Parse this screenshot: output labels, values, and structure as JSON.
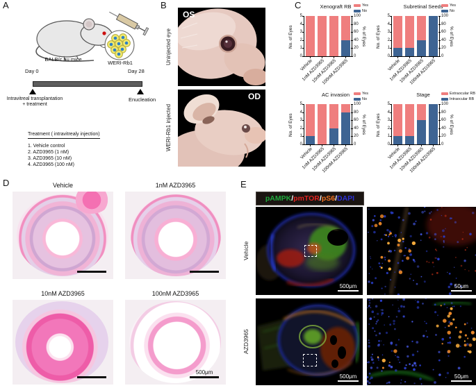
{
  "colors": {
    "yes_pink": "#ef7e7e",
    "no_blue": "#3e6493",
    "scalebar_black": "#111111",
    "scalebar_white": "#ffffff"
  },
  "panels": {
    "a": {
      "label": "A",
      "mouse_caption": "BALB/c nu mice",
      "cells_caption": "WERI-Rb1",
      "timeline": {
        "start_label": "Day 0",
        "end_label": "Day 28",
        "start_event_line1": "Intravitreal transplantation",
        "start_event_line2": "+ treatment",
        "end_event": "Enucleation"
      },
      "treatment": {
        "title": "Treatment ( intravitrealy injection)",
        "items": [
          "1. Vehicle control",
          "2. AZD3965 (1 nM)",
          "3. AZD3965 (10 nM)",
          "4. AZD3965 (100 nM)"
        ]
      }
    },
    "b": {
      "label": "B",
      "top_image": {
        "corner_label": "OS",
        "side_label": "Uninjected eye"
      },
      "bottom_image": {
        "corner_label": "OD",
        "side_label": "WERI-Rb1 injected"
      }
    },
    "c": {
      "label": "C"
    },
    "d": {
      "label": "D",
      "titles": [
        "Vehicle",
        "1nM AZD3965",
        "10nM AZD3965",
        "100nM AZD3965"
      ],
      "scale_label": "500μm"
    },
    "e": {
      "label": "E",
      "header_parts": [
        {
          "text": "pAMPK",
          "color": "#1fa83c"
        },
        {
          "text": "/",
          "color": "#ffffff"
        },
        {
          "text": "pmTOR",
          "color": "#e02421"
        },
        {
          "text": "/",
          "color": "#ffffff"
        },
        {
          "text": "pS6",
          "color": "#f07122"
        },
        {
          "text": "/",
          "color": "#ffffff"
        },
        {
          "text": "DAPI",
          "color": "#2b2fd4"
        }
      ],
      "rows": [
        {
          "side_label": "Vehicle",
          "left_scale": "500μm",
          "right_scale": "50μm"
        },
        {
          "side_label": "AZD3965",
          "left_scale": "500μm",
          "right_scale": "50μm"
        }
      ]
    }
  },
  "chart_data": [
    {
      "type": "bar",
      "stacked": true,
      "title": "Xenograft RB",
      "categories": [
        "Vehicle",
        "1nM AZD3965",
        "10nM AZD3965",
        "100nM AZD3965"
      ],
      "stack": [
        {
          "name": "No",
          "color": "#3e6493",
          "values": [
            0,
            0,
            0,
            2
          ]
        },
        {
          "name": "Yes",
          "color": "#ef7e7e",
          "values": [
            5,
            5,
            5,
            3
          ]
        }
      ],
      "legend": [
        {
          "label": "Yes",
          "color": "#ef7e7e"
        },
        {
          "label": "No",
          "color": "#3e6493"
        }
      ],
      "ylabel_left": "No. of Eyes",
      "ylabel_right": "% of Eyes",
      "ylim_left": [
        0,
        5
      ],
      "ylim_right": [
        0,
        100
      ],
      "yticks_left": [
        0,
        1,
        2,
        3,
        4,
        5
      ],
      "yticks_right": [
        0,
        20,
        40,
        60,
        80,
        100
      ],
      "grid": false,
      "legend_position": "top-right"
    },
    {
      "type": "bar",
      "stacked": true,
      "title": "Subretinal Seeds",
      "categories": [
        "Vehicle",
        "1nM AZD3965",
        "10nM AZD3965",
        "100nM AZD3965"
      ],
      "stack": [
        {
          "name": "No",
          "color": "#3e6493",
          "values": [
            1,
            1,
            2,
            5
          ]
        },
        {
          "name": "Yes",
          "color": "#ef7e7e",
          "values": [
            4,
            4,
            3,
            0
          ]
        }
      ],
      "legend": [
        {
          "label": "Yes",
          "color": "#ef7e7e"
        },
        {
          "label": "No",
          "color": "#3e6493"
        }
      ],
      "ylabel_left": "No. of Eyes",
      "ylabel_right": "% of Eyes",
      "ylim_left": [
        0,
        5
      ],
      "ylim_right": [
        0,
        100
      ],
      "yticks_left": [
        0,
        1,
        2,
        3,
        4,
        5
      ],
      "yticks_right": [
        0,
        20,
        40,
        60,
        80,
        100
      ],
      "grid": false,
      "legend_position": "top-right"
    },
    {
      "type": "bar",
      "stacked": true,
      "title": "AC invasion",
      "categories": [
        "Vehicle",
        "1nM AZD3965",
        "10nM AZD3965",
        "100nM AZD3965"
      ],
      "stack": [
        {
          "name": "No",
          "color": "#3e6493",
          "values": [
            1,
            0,
            2,
            4
          ]
        },
        {
          "name": "Yes",
          "color": "#ef7e7e",
          "values": [
            4,
            5,
            3,
            1
          ]
        }
      ],
      "legend": [
        {
          "label": "Yes",
          "color": "#ef7e7e"
        },
        {
          "label": "No",
          "color": "#3e6493"
        }
      ],
      "ylabel_left": "No. of Eyes",
      "ylabel_right": "% of Eyes",
      "ylim_left": [
        0,
        5
      ],
      "ylim_right": [
        0,
        100
      ],
      "yticks_left": [
        0,
        1,
        2,
        3,
        4,
        5
      ],
      "yticks_right": [
        0,
        20,
        40,
        60,
        80,
        100
      ],
      "grid": false,
      "legend_position": "top-right"
    },
    {
      "type": "bar",
      "stacked": true,
      "title": "Stage",
      "categories": [
        "Vehicle",
        "1nM AZD3965",
        "10nM AZD3965",
        "100nM AZD3965"
      ],
      "stack": [
        {
          "name": "Intraocular RB",
          "color": "#3e6493",
          "values": [
            1,
            1,
            3,
            5
          ]
        },
        {
          "name": "Extraocular RB",
          "color": "#ef7e7e",
          "values": [
            4,
            4,
            2,
            0
          ]
        }
      ],
      "legend": [
        {
          "label": "Extraocular RB",
          "color": "#ef7e7e"
        },
        {
          "label": "Intraocular RB",
          "color": "#3e6493"
        }
      ],
      "ylabel_left": "No. of Eyes",
      "ylabel_right": "% of Eyes",
      "ylim_left": [
        0,
        5
      ],
      "ylim_right": [
        0,
        100
      ],
      "yticks_left": [
        0,
        1,
        2,
        3,
        4,
        5
      ],
      "yticks_right": [
        0,
        20,
        40,
        60,
        80,
        100
      ],
      "grid": false,
      "legend_position": "top-right"
    }
  ]
}
